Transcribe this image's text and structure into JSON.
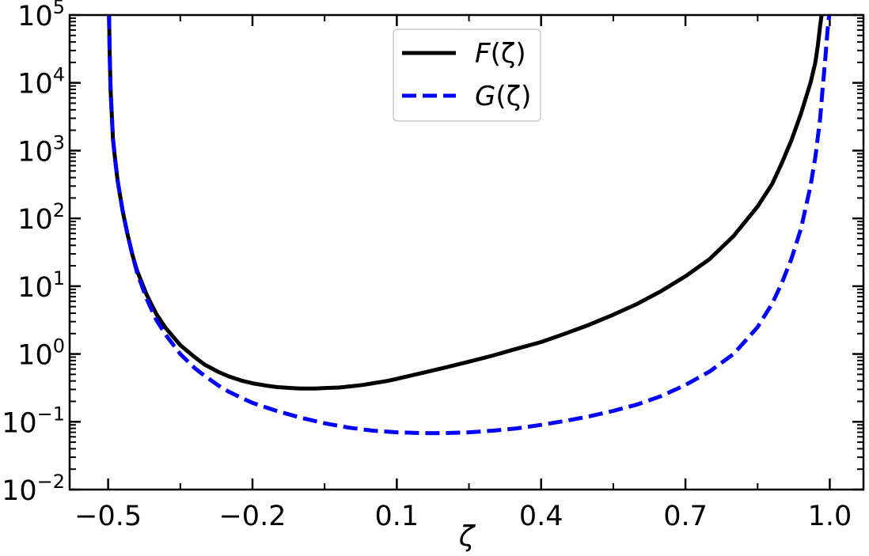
{
  "chart_data": {
    "type": "line",
    "title": "",
    "xlabel": "ζ",
    "ylabel": "",
    "yscale": "log",
    "xlim": [
      -0.58,
      1.07
    ],
    "ylim": [
      0.01,
      100000
    ],
    "grid": false,
    "legend_position": "top-center",
    "x_ticks": [
      -0.5,
      -0.2,
      0.1,
      0.4,
      0.7,
      1.0
    ],
    "x_tick_labels": [
      "−0.5",
      "−0.2",
      "0.1",
      "0.4",
      "0.7",
      "1.0"
    ],
    "y_ticks": [
      0.01,
      0.1,
      1,
      10,
      100,
      1000,
      10000,
      100000
    ],
    "y_tick_bases": [
      "10",
      "10",
      "10",
      "10",
      "10",
      "10",
      "10",
      "10"
    ],
    "y_tick_exponents": [
      "−2",
      "−1",
      "0",
      "1",
      "2",
      "3",
      "4",
      "5"
    ],
    "series": [
      {
        "name": "F(ζ)",
        "name_func": "F",
        "name_arg": "(ζ)",
        "color": "#000000",
        "dash": "solid",
        "x": [
          -0.498,
          -0.497,
          -0.495,
          -0.49,
          -0.485,
          -0.48,
          -0.47,
          -0.46,
          -0.45,
          -0.44,
          -0.42,
          -0.4,
          -0.38,
          -0.35,
          -0.32,
          -0.3,
          -0.27,
          -0.25,
          -0.22,
          -0.2,
          -0.17,
          -0.15,
          -0.12,
          -0.1,
          -0.07,
          -0.05,
          -0.02,
          0.0,
          0.03,
          0.05,
          0.08,
          0.1,
          0.15,
          0.2,
          0.25,
          0.3,
          0.35,
          0.4,
          0.45,
          0.5,
          0.55,
          0.6,
          0.65,
          0.7,
          0.75,
          0.8,
          0.85,
          0.88,
          0.9,
          0.92,
          0.94,
          0.96,
          0.97,
          0.975,
          0.98,
          0.983
        ],
        "y": [
          100000,
          30000,
          8000,
          1500,
          700,
          350,
          130,
          60,
          30,
          17,
          7.5,
          3.9,
          2.4,
          1.35,
          0.9,
          0.7,
          0.54,
          0.47,
          0.4,
          0.37,
          0.34,
          0.325,
          0.315,
          0.31,
          0.31,
          0.315,
          0.32,
          0.33,
          0.35,
          0.37,
          0.4,
          0.43,
          0.52,
          0.63,
          0.77,
          0.95,
          1.2,
          1.5,
          2.0,
          2.7,
          3.8,
          5.5,
          8.5,
          14,
          25,
          55,
          150,
          320,
          650,
          1400,
          3500,
          10000,
          20000,
          35000,
          70000,
          100000
        ]
      },
      {
        "name": "G(ζ)",
        "name_func": "G",
        "name_arg": "(ζ)",
        "color": "#0000ff",
        "dash": "dashed",
        "x": [
          -0.498,
          -0.497,
          -0.495,
          -0.49,
          -0.485,
          -0.48,
          -0.47,
          -0.46,
          -0.45,
          -0.44,
          -0.42,
          -0.4,
          -0.38,
          -0.35,
          -0.32,
          -0.3,
          -0.27,
          -0.25,
          -0.22,
          -0.2,
          -0.15,
          -0.1,
          -0.05,
          0.0,
          0.05,
          0.1,
          0.15,
          0.2,
          0.25,
          0.3,
          0.35,
          0.4,
          0.45,
          0.5,
          0.55,
          0.6,
          0.65,
          0.7,
          0.75,
          0.8,
          0.85,
          0.88,
          0.9,
          0.92,
          0.94,
          0.96,
          0.97,
          0.98,
          0.985,
          0.99,
          0.994,
          0.997,
          0.999
        ],
        "y": [
          100000,
          30000,
          8000,
          1500,
          700,
          350,
          130,
          60,
          30,
          16,
          6.5,
          3.2,
          1.9,
          1.0,
          0.62,
          0.48,
          0.34,
          0.28,
          0.22,
          0.19,
          0.145,
          0.115,
          0.095,
          0.082,
          0.074,
          0.07,
          0.068,
          0.068,
          0.07,
          0.074,
          0.08,
          0.09,
          0.103,
          0.12,
          0.145,
          0.18,
          0.24,
          0.35,
          0.55,
          1.0,
          2.5,
          5.5,
          11,
          25,
          70,
          300,
          800,
          3000,
          8000,
          20000,
          45000,
          80000,
          100000
        ]
      }
    ]
  }
}
